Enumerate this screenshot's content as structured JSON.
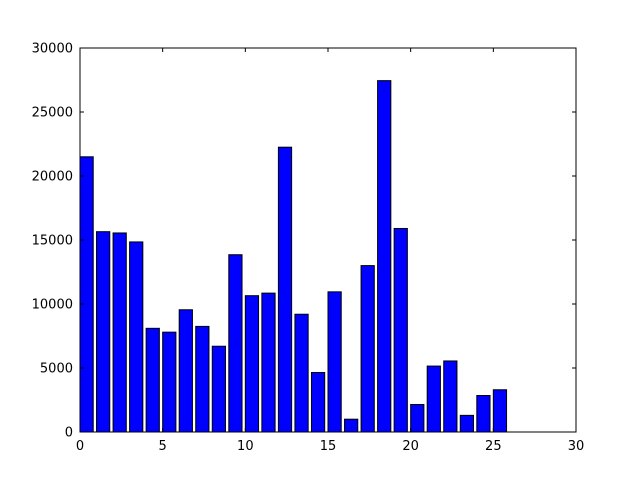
{
  "figure": {
    "background_color": "#ffffff",
    "axes_background_color": "#ffffff",
    "axis_color": "#000000",
    "tick_label_color": "#000000"
  },
  "chart_data": {
    "type": "bar",
    "title": "",
    "xlabel": "",
    "ylabel": "",
    "grid": false,
    "legend": null,
    "bar_color": "#0000ff",
    "bar_edge_color": "#000000",
    "bar_width": 0.8,
    "xlim": [
      0,
      30
    ],
    "ylim": [
      0,
      30000
    ],
    "xticks": [
      0,
      5,
      10,
      15,
      20,
      25,
      30
    ],
    "yticks": [
      0,
      5000,
      10000,
      15000,
      20000,
      25000,
      30000
    ],
    "xtick_labels": [
      "0",
      "5",
      "10",
      "15",
      "20",
      "25",
      "30"
    ],
    "ytick_labels": [
      "0",
      "5000",
      "10000",
      "15000",
      "20000",
      "25000",
      "30000"
    ],
    "x": [
      0,
      1,
      2,
      3,
      4,
      5,
      6,
      7,
      8,
      9,
      10,
      11,
      12,
      13,
      14,
      15,
      16,
      17,
      18,
      19,
      20,
      21,
      22,
      23,
      24,
      25
    ],
    "values": [
      21500,
      15650,
      15550,
      14850,
      8100,
      7800,
      9550,
      8250,
      6700,
      13850,
      10650,
      10850,
      22250,
      9200,
      4650,
      10950,
      1000,
      13000,
      27450,
      15900,
      2150,
      5150,
      5550,
      1300,
      2850,
      3300
    ]
  }
}
